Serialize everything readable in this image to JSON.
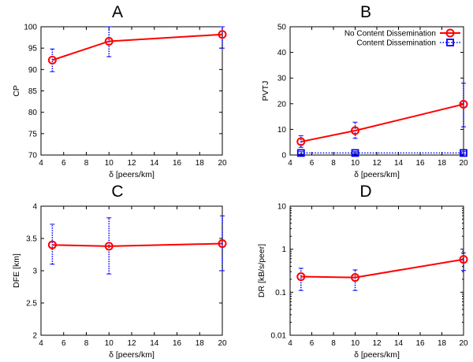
{
  "colors": {
    "series_primary": "#ff0000",
    "series_secondary": "#0000ff",
    "axis": "#000000",
    "background": "#ffffff"
  },
  "legend": {
    "entries": [
      "No Content Dissemination",
      "Content Dissemination"
    ]
  },
  "chart_data": [
    {
      "type": "line",
      "panel_label": "A",
      "title": "",
      "xlabel": "δ [peers/km]",
      "ylabel": "CP",
      "xlim": [
        4,
        20
      ],
      "ylim": [
        70,
        100
      ],
      "yscale": "linear",
      "xticks": [
        4,
        6,
        8,
        10,
        12,
        14,
        16,
        18,
        20
      ],
      "yticks": [
        70,
        75,
        80,
        85,
        90,
        95,
        100
      ],
      "series": [
        {
          "name": "No Content Dissemination",
          "x": [
            5,
            10,
            20
          ],
          "y": [
            92.2,
            96.6,
            98.2
          ],
          "err_low": [
            89.5,
            93.0,
            95.0
          ],
          "err_high": [
            94.8,
            100.0,
            100.0
          ]
        }
      ]
    },
    {
      "type": "line",
      "panel_label": "B",
      "title": "",
      "xlabel": "δ [peers/km]",
      "ylabel": "PVTJ",
      "xlim": [
        4,
        20
      ],
      "ylim": [
        0,
        50
      ],
      "yscale": "linear",
      "xticks": [
        4,
        6,
        8,
        10,
        12,
        14,
        16,
        18,
        20
      ],
      "yticks": [
        0,
        10,
        20,
        30,
        40,
        50
      ],
      "legend_position": "top-right",
      "series": [
        {
          "name": "No Content Dissemination",
          "x": [
            5,
            10,
            20
          ],
          "y": [
            5.2,
            9.5,
            19.8
          ],
          "err_low": [
            3.0,
            6.5,
            11.0
          ],
          "err_high": [
            7.5,
            12.8,
            28.0
          ]
        },
        {
          "name": "Content Dissemination",
          "x": [
            5,
            10,
            20
          ],
          "y": [
            0.8,
            0.8,
            0.8
          ],
          "err_low": [
            0.3,
            0.3,
            0.3
          ],
          "err_high": [
            1.3,
            1.3,
            1.3
          ]
        }
      ]
    },
    {
      "type": "line",
      "panel_label": "C",
      "title": "",
      "xlabel": "δ [peers/km]",
      "ylabel": "DFE [km]",
      "xlim": [
        4,
        20
      ],
      "ylim": [
        2,
        4
      ],
      "yscale": "linear",
      "xticks": [
        4,
        6,
        8,
        10,
        12,
        14,
        16,
        18,
        20
      ],
      "yticks": [
        2,
        2.5,
        3,
        3.5,
        4
      ],
      "series": [
        {
          "name": "No Content Dissemination",
          "x": [
            5,
            10,
            20
          ],
          "y": [
            3.4,
            3.38,
            3.42
          ],
          "err_low": [
            3.1,
            2.95,
            3.0
          ],
          "err_high": [
            3.72,
            3.82,
            3.85
          ]
        }
      ]
    },
    {
      "type": "line",
      "panel_label": "D",
      "title": "",
      "xlabel": "δ [peers/km]",
      "ylabel": "DR [kB/s/peer]",
      "xlim": [
        4,
        20
      ],
      "ylim": [
        0.01,
        10
      ],
      "yscale": "log",
      "xticks": [
        4,
        6,
        8,
        10,
        12,
        14,
        16,
        18,
        20
      ],
      "yticks": [
        0.01,
        0.1,
        1,
        10
      ],
      "series": [
        {
          "name": "No Content Dissemination",
          "x": [
            5,
            10,
            20
          ],
          "y": [
            0.23,
            0.22,
            0.58
          ],
          "err_low": [
            0.11,
            0.11,
            0.32
          ],
          "err_high": [
            0.36,
            0.33,
            0.82
          ]
        }
      ]
    }
  ]
}
